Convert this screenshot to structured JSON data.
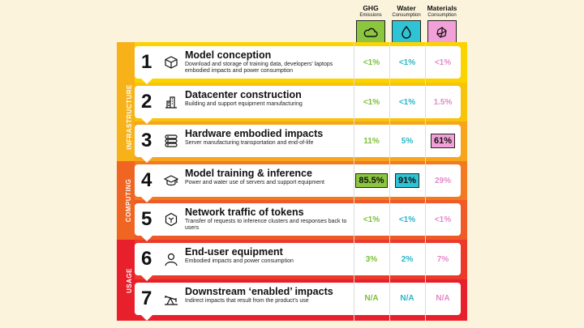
{
  "columns": [
    {
      "title": "GHG",
      "subtitle": "Emissions",
      "icon": "cloud-icon",
      "color": "#8cc63f",
      "text_color": "#7dbf3a"
    },
    {
      "title": "Water",
      "subtitle": "Consumption",
      "icon": "water-drop-icon",
      "color": "#2ec4d6",
      "text_color": "#29b6c6"
    },
    {
      "title": "Materials",
      "subtitle": "Consumption",
      "icon": "materials-icon",
      "color": "#f2a0d8",
      "text_color": "#e58ac8"
    }
  ],
  "bands": [
    {
      "label": "INFRASTRUCTURE",
      "color": "#f7b21a"
    },
    {
      "label": "COMPUTING",
      "color": "#f16522"
    },
    {
      "label": "USAGE",
      "color": "#e8202b"
    }
  ],
  "rows": [
    {
      "num": "1",
      "icon": "cube-icon",
      "title": "Model conception",
      "desc": "Download and storage of training data, developers' laptops embodied impacts and power consumption",
      "values": [
        "<1%",
        "<1%",
        "<1%"
      ],
      "highlight": [
        false,
        false,
        false
      ]
    },
    {
      "num": "2",
      "icon": "building-icon",
      "title": "Datacenter construction",
      "desc": "Building and support equipment manufacturing",
      "values": [
        "<1%",
        "<1%",
        "1.5%"
      ],
      "highlight": [
        false,
        false,
        false
      ]
    },
    {
      "num": "3",
      "icon": "server-icon",
      "title": "Hardware embodied impacts",
      "desc": "Server manufacturing transportation and end-of-life",
      "values": [
        "11%",
        "5%",
        "61%"
      ],
      "highlight": [
        false,
        false,
        true
      ]
    },
    {
      "num": "4",
      "icon": "graduation-cap-icon",
      "title": "Model training & inference",
      "desc": "Power and water use of servers and support equipment",
      "values": [
        "85.5%",
        "91%",
        "29%"
      ],
      "highlight": [
        true,
        true,
        false
      ]
    },
    {
      "num": "5",
      "icon": "network-icon",
      "title": "Network traffic of tokens",
      "desc": "Transfer of requests to inference clusters and responses back to users",
      "values": [
        "<1%",
        "<1%",
        "<1%"
      ],
      "highlight": [
        false,
        false,
        false
      ]
    },
    {
      "num": "6",
      "icon": "user-icon",
      "title": "End-user equipment",
      "desc": "Embodied impacts and power consumption",
      "values": [
        "3%",
        "2%",
        "7%"
      ],
      "highlight": [
        false,
        false,
        false
      ]
    },
    {
      "num": "7",
      "icon": "pumpjack-icon",
      "title": "Downstream ‘enabled’ impacts",
      "desc": "Indirect impacts that result from the product's use",
      "values": [
        "N/A",
        "N/A",
        "N/A"
      ],
      "highlight": [
        false,
        false,
        false
      ]
    }
  ]
}
